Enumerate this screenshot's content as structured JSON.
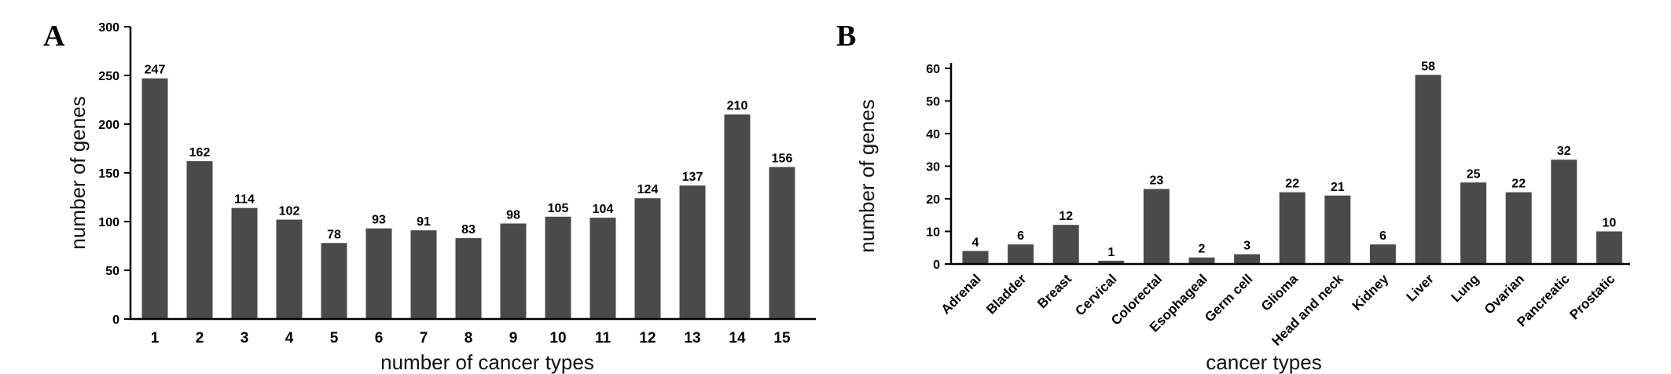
{
  "chart_data": [
    {
      "type": "bar",
      "panel": "A",
      "categories": [
        "1",
        "2",
        "3",
        "4",
        "5",
        "6",
        "7",
        "8",
        "9",
        "10",
        "11",
        "12",
        "13",
        "14",
        "15"
      ],
      "values": [
        247,
        162,
        114,
        102,
        78,
        93,
        91,
        83,
        98,
        105,
        104,
        124,
        137,
        210,
        156
      ],
      "xlabel": "number of cancer types",
      "ylabel": "number of genes",
      "ylim": [
        0,
        300
      ],
      "yticks": [
        0,
        50,
        100,
        150,
        200,
        250,
        300
      ],
      "bar_color": "#4a4a4a"
    },
    {
      "type": "bar",
      "panel": "B",
      "categories": [
        "Adrenal",
        "Bladder",
        "Breast",
        "Cervical",
        "Colorectal",
        "Esophageal",
        "Germ cell",
        "Glioma",
        "Head and neck",
        "Kidney",
        "Liver",
        "Lung",
        "Ovarian",
        "Pancreatic",
        "Prostatic"
      ],
      "values": [
        4,
        6,
        12,
        1,
        23,
        2,
        3,
        22,
        21,
        6,
        58,
        25,
        22,
        32,
        10
      ],
      "xlabel": "cancer types",
      "ylabel": "number of genes",
      "ylim": [
        0,
        60
      ],
      "yticks": [
        0,
        10,
        20,
        30,
        40,
        50,
        60
      ],
      "bar_color": "#4a4a4a"
    }
  ]
}
